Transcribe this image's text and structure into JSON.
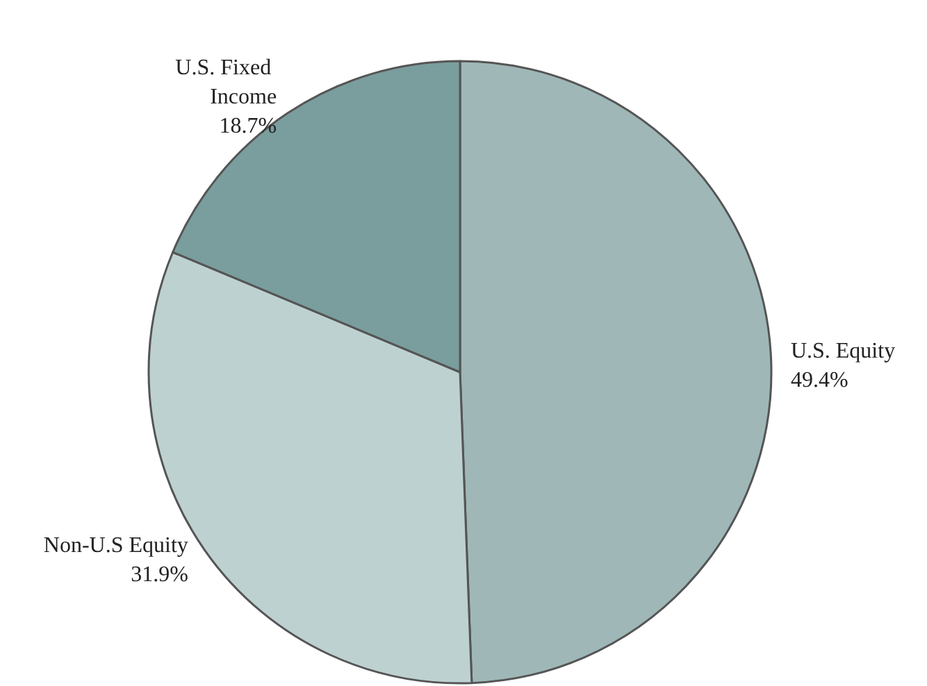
{
  "chart_data": {
    "type": "pie",
    "categories": [
      "U.S. Equity",
      "Non-U.S Equity",
      "U.S. Fixed Income"
    ],
    "values": [
      49.4,
      31.9,
      18.7
    ],
    "colors": [
      "#9fb7b7",
      "#bed1d1",
      "#7a9e9d"
    ],
    "value_labels": [
      "49.4%",
      "31.9%",
      "18.7%"
    ],
    "legend": false
  }
}
